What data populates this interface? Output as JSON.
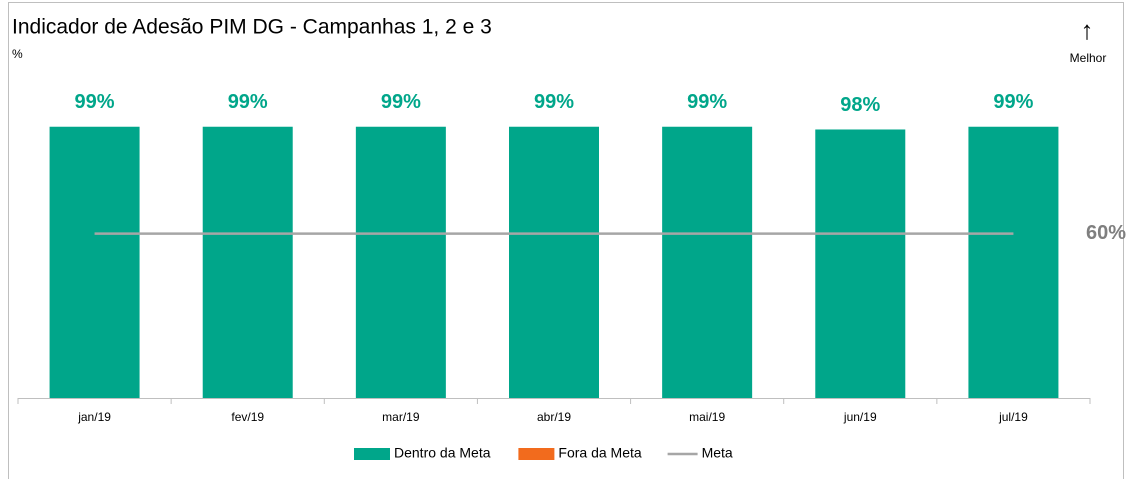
{
  "chart_data": {
    "type": "bar",
    "title": "Indicador de Adesão PIM DG - Campanhas 1, 2 e 3",
    "y_unit": "%",
    "annotation": {
      "arrow": "↑",
      "text": "Melhor"
    },
    "categories": [
      "jan/19",
      "fev/19",
      "mar/19",
      "abr/19",
      "mai/19",
      "jun/19",
      "jul/19"
    ],
    "series": [
      {
        "name": "Dentro da Meta",
        "color": "#00a68a",
        "values": [
          99,
          99,
          99,
          99,
          99,
          98,
          99
        ],
        "value_labels": [
          "99%",
          "99%",
          "99%",
          "99%",
          "99%",
          "98%",
          "99%"
        ]
      },
      {
        "name": "Fora da Meta",
        "color": "#f26b1d",
        "values": [
          0,
          0,
          0,
          0,
          0,
          0,
          0
        ]
      },
      {
        "name": "Meta",
        "color": "#a6a6a6",
        "kind": "line",
        "values": [
          60,
          60,
          60,
          60,
          60,
          60,
          60
        ],
        "end_label": "60%"
      }
    ],
    "ylim": [
      0,
      100
    ],
    "legend": "bottom"
  }
}
